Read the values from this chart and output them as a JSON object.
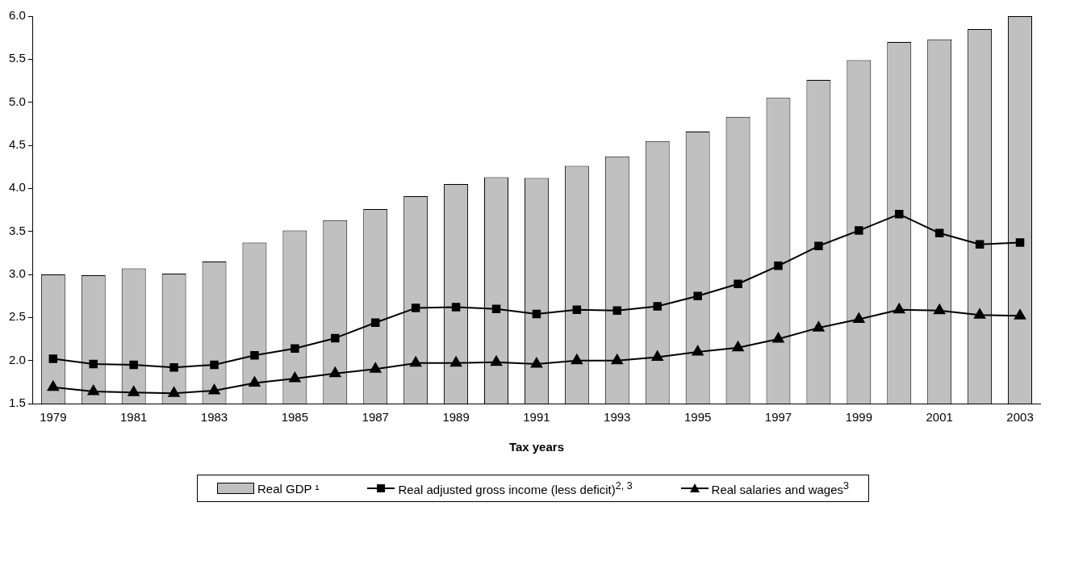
{
  "chart_data": {
    "type": "bar",
    "xlabel": "Tax years",
    "categories": [
      "1979",
      null,
      "1981",
      null,
      "1983",
      null,
      "1985",
      null,
      "1987",
      null,
      "1989",
      null,
      "1991",
      null,
      "1993",
      null,
      "1995",
      null,
      "1997",
      null,
      "1999",
      null,
      "2001",
      null,
      "2003"
    ],
    "ylim": [
      1.5,
      6.0
    ],
    "yticks": [
      {
        "value": 1.5,
        "label": "1.5"
      },
      {
        "value": 2,
        "label": "2.0"
      },
      {
        "value": 2.5,
        "label": "2.5"
      },
      {
        "value": 3,
        "label": "3.0"
      },
      {
        "value": 3.5,
        "label": "3.5"
      },
      {
        "value": 4,
        "label": "4.0"
      },
      {
        "value": 4.5,
        "label": "4.5"
      },
      {
        "value": 5,
        "label": "5.0"
      },
      {
        "value": 5.5,
        "label": "5.5"
      },
      {
        "value": 6,
        "label": "6.0"
      }
    ],
    "grid": false,
    "legend": "bottom",
    "series": [
      {
        "name": "Real GDP ¹",
        "color": "#c0c0c0",
        "values": [
          3.0,
          2.99,
          3.07,
          3.01,
          3.15,
          3.37,
          3.51,
          3.63,
          3.76,
          3.91,
          4.05,
          4.13,
          4.12,
          4.26,
          4.37,
          4.55,
          4.66,
          4.83,
          5.05,
          5.26,
          5.49,
          5.7,
          5.73,
          5.85,
          6.0
        ]
      },
      {
        "name": "Real adjusted gross income (less deficit)$^{2, 3}$",
        "type": "line",
        "marker": "square",
        "color": "#000000",
        "values": [
          2.02,
          1.96,
          1.95,
          1.92,
          1.95,
          2.06,
          2.14,
          2.26,
          2.44,
          2.61,
          2.62,
          2.6,
          2.54,
          2.59,
          2.58,
          2.63,
          2.75,
          2.89,
          3.1,
          3.33,
          3.51,
          3.7,
          3.48,
          3.35,
          3.37
        ]
      },
      {
        "name": "Real salaries and wages$^{3}$",
        "type": "line",
        "marker": "triangle",
        "color": "#000000",
        "values": [
          1.69,
          1.64,
          1.63,
          1.62,
          1.65,
          1.74,
          1.79,
          1.85,
          1.9,
          1.97,
          1.97,
          1.98,
          1.96,
          2.0,
          2.0,
          2.04,
          2.1,
          2.15,
          2.25,
          2.38,
          2.48,
          2.59,
          2.58,
          2.53,
          2.52
        ]
      }
    ]
  }
}
